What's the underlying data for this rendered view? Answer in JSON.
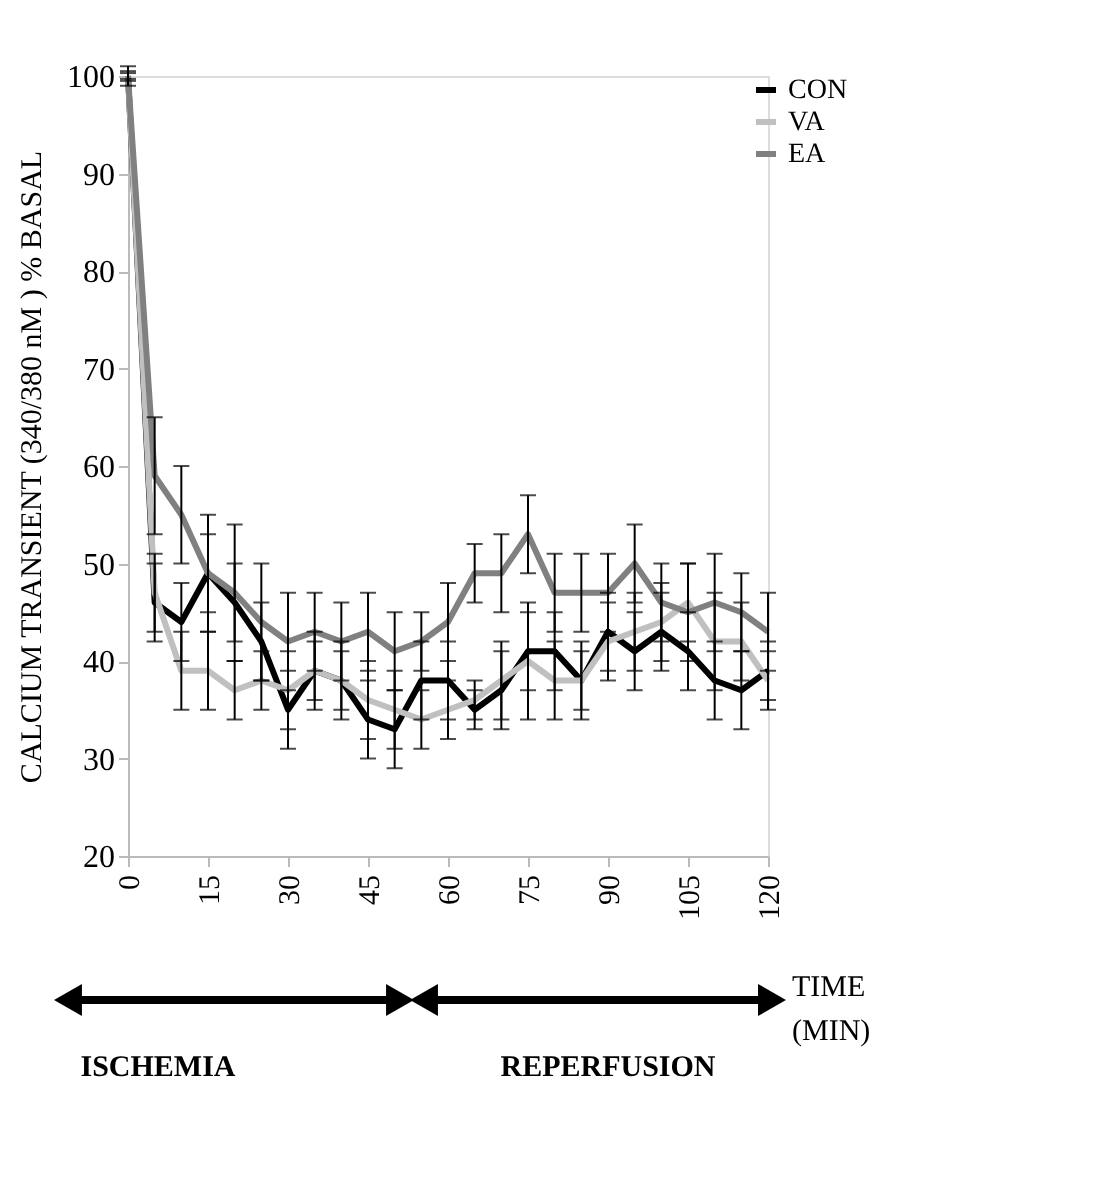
{
  "chart_data": {
    "type": "line",
    "ylabel": "CALCIUM TRANSIENT (340/380 nM ) % BASAL",
    "x": [
      0,
      5,
      10,
      15,
      20,
      25,
      30,
      35,
      40,
      45,
      50,
      55,
      60,
      65,
      70,
      75,
      80,
      85,
      90,
      95,
      100,
      105,
      110,
      115,
      120
    ],
    "series": [
      {
        "name": "CON",
        "color": "#000000",
        "values": [
          100,
          46,
          44,
          49,
          46,
          42,
          35,
          39,
          38,
          34,
          33,
          38,
          38,
          35,
          37,
          41,
          41,
          38,
          43,
          41,
          43,
          41,
          38,
          37,
          39
        ],
        "errors": [
          0.5,
          4,
          4,
          4,
          4,
          4,
          4,
          4,
          4,
          4,
          4,
          4,
          4,
          2,
          4,
          4,
          4,
          4,
          4,
          4,
          4,
          4,
          4,
          4,
          3
        ]
      },
      {
        "name": "VA",
        "color": "#c0c0c0",
        "values": [
          100,
          47,
          39,
          39,
          37,
          38,
          37,
          39,
          38,
          36,
          35,
          34,
          35,
          36,
          38,
          40,
          38,
          38,
          42,
          43,
          44,
          46,
          42,
          42,
          38
        ],
        "errors": [
          0.3,
          4,
          4,
          4,
          3,
          3,
          4,
          3,
          3,
          4,
          4,
          3,
          3,
          2,
          4,
          6,
          4,
          3,
          4,
          4,
          4,
          4,
          5,
          4,
          3
        ]
      },
      {
        "name": "EA",
        "color": "#808080",
        "values": [
          100,
          59,
          55,
          49,
          47,
          44,
          42,
          43,
          42,
          43,
          41,
          42,
          44,
          49,
          49,
          53,
          47,
          47,
          47,
          50,
          46,
          45,
          46,
          45,
          43
        ],
        "errors": [
          1,
          6,
          5,
          6,
          7,
          6,
          5,
          4,
          4,
          4,
          4,
          3,
          4,
          3,
          4,
          4,
          4,
          4,
          4,
          4,
          4,
          5,
          5,
          4,
          4
        ]
      }
    ],
    "xlim": [
      0,
      120
    ],
    "xticks": [
      0,
      15,
      30,
      45,
      60,
      75,
      90,
      105,
      120
    ],
    "ylim": [
      20,
      100
    ],
    "yticks": [
      20,
      30,
      40,
      50,
      60,
      70,
      80,
      90,
      100
    ],
    "grid": false,
    "legend": "right",
    "marker": "none",
    "line_style": "solid",
    "annotations": [
      "TIME (MIN)",
      "ISCHEMIA",
      "REPERFUSION"
    ]
  }
}
